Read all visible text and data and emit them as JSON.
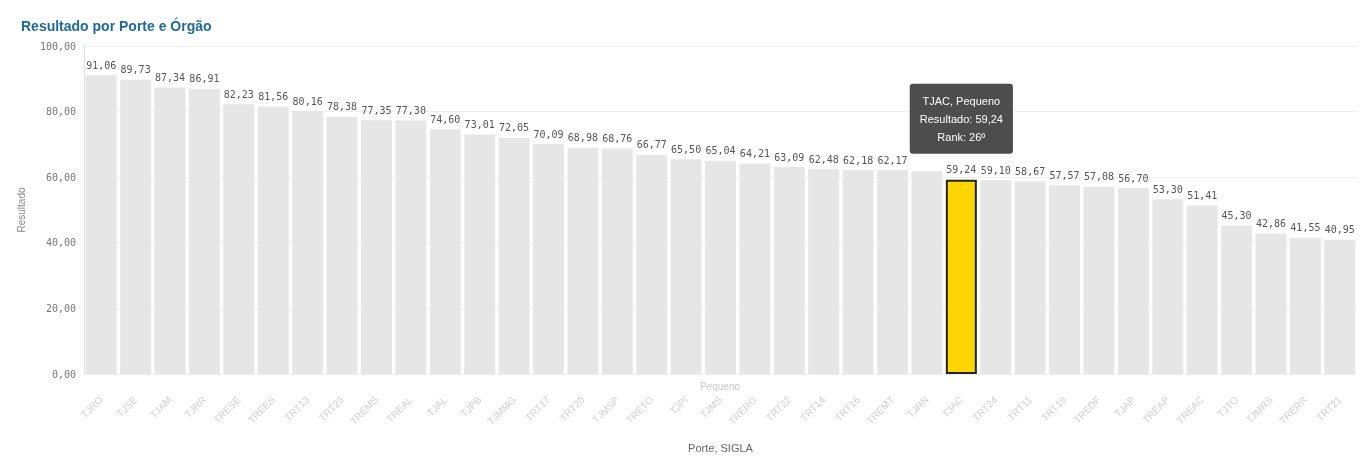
{
  "chart_data": {
    "type": "bar",
    "title": "Resultado por Porte e Órgão",
    "xlabel": "Porte, SIGLA",
    "ylabel": "Resultado",
    "categories": [
      "TJRO",
      "TJSE",
      "TJAM",
      "TJRR",
      "TRESE",
      "TREES",
      "TRT13",
      "TRT23",
      "TREMS",
      "TREAL",
      "TJAL",
      "TJPB",
      "TJMMG",
      "TRT17",
      "TRT20",
      "TJMSP",
      "TRETO",
      "TJPI",
      "TJMS",
      "TRERO",
      "TRT22",
      "TRT14",
      "TRT16",
      "TREMT",
      "TJRN",
      "TJAC",
      "TRT24",
      "TRT11",
      "TRT19",
      "TREDF",
      "TJAP",
      "TREAP",
      "TREAC",
      "TJTO",
      "TJMRS",
      "TRERR",
      "TRT21"
    ],
    "values": [
      91.06,
      89.73,
      87.34,
      86.91,
      82.23,
      81.56,
      80.16,
      78.38,
      77.35,
      77.3,
      74.6,
      73.01,
      72.05,
      70.09,
      68.98,
      68.76,
      66.77,
      65.5,
      65.04,
      64.21,
      63.09,
      62.48,
      62.18,
      62.17,
      61.8,
      59.24,
      59.1,
      58.67,
      57.57,
      57.08,
      56.7,
      53.3,
      51.41,
      45.3,
      42.86,
      41.55,
      40.95
    ],
    "value_labels": [
      "91,06",
      "89,73",
      "87,34",
      "86,91",
      "82,23",
      "81,56",
      "80,16",
      "78,38",
      "77,35",
      "77,30",
      "74,60",
      "73,01",
      "72,05",
      "70,09",
      "68,98",
      "68,76",
      "66,77",
      "65,50",
      "65,04",
      "64,21",
      "63,09",
      "62,48",
      "62,18",
      "62,17",
      null,
      "59,24",
      "59,10",
      "58,67",
      "57,57",
      "57,08",
      "56,70",
      "53,30",
      "51,41",
      "45,30",
      "42,86",
      "41,55",
      "40,95"
    ],
    "colors": [
      "#e6e6e6",
      "#e6e6e6",
      "#e6e6e6",
      "#e6e6e6",
      "#e6e6e6",
      "#e6e6e6",
      "#e6e6e6",
      "#e6e6e6",
      "#e6e6e6",
      "#e6e6e6",
      "#e6e6e6",
      "#e6e6e6",
      "#e6e6e6",
      "#e6e6e6",
      "#e6e6e6",
      "#e6e6e6",
      "#e6e6e6",
      "#e6e6e6",
      "#e6e6e6",
      "#e6e6e6",
      "#e6e6e6",
      "#e6e6e6",
      "#e6e6e6",
      "#e6e6e6",
      "#e6e6e6",
      "#ffd500",
      "#e6e6e6",
      "#e6e6e6",
      "#e6e6e6",
      "#e6e6e6",
      "#e6e6e6",
      "#e6e6e6",
      "#e6e6e6",
      "#e6e6e6",
      "#e6e6e6",
      "#e6e6e6",
      "#e6e6e6"
    ],
    "ylim": [
      0,
      100
    ],
    "yticks": [
      {
        "value": 0,
        "label": "0,00"
      },
      {
        "value": 20,
        "label": "20,00"
      },
      {
        "value": 40,
        "label": "40,00"
      },
      {
        "value": 60,
        "label": "60,00"
      },
      {
        "value": 80,
        "label": "80,00"
      },
      {
        "value": 100,
        "label": "100,00"
      }
    ],
    "grid": "y",
    "annotations": [
      "Pequeno",
      "TJAC, Pequeno\nResultado: 59,24\nRank: 26º"
    ]
  }
}
